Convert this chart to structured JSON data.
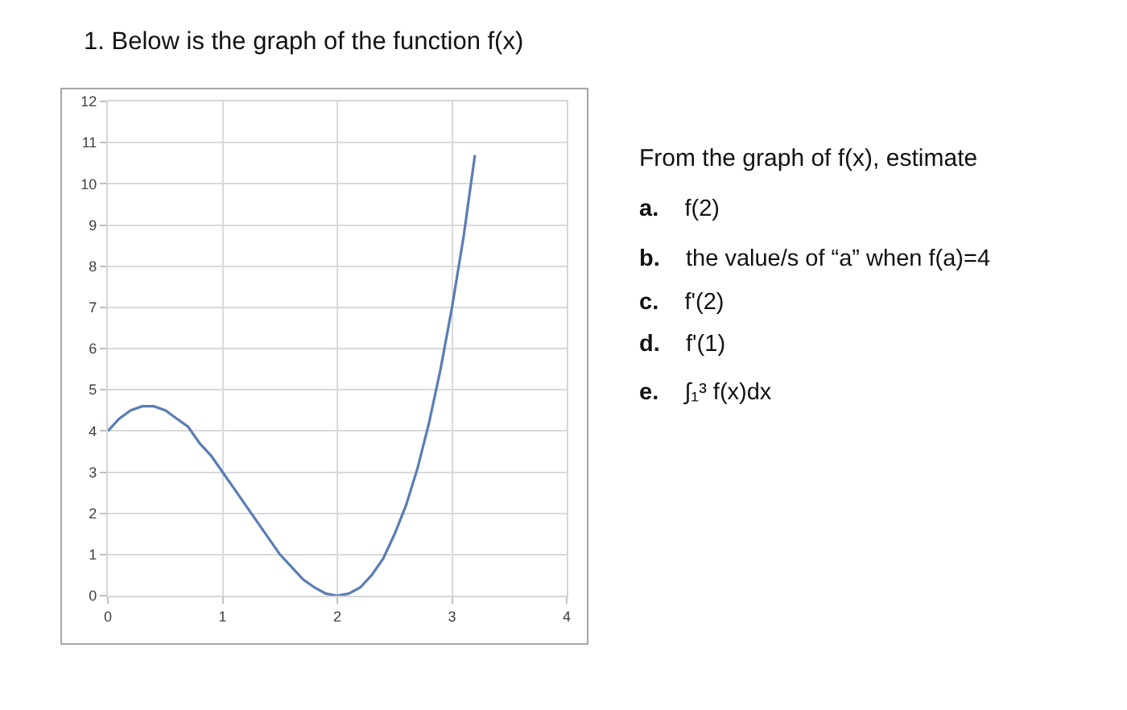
{
  "chart_data": {
    "type": "line",
    "title": "1. Below is the graph of the function f(x)",
    "x": [
      0,
      0.1,
      0.2,
      0.3,
      0.4,
      0.5,
      0.6,
      0.7,
      0.8,
      0.9,
      1.0,
      1.1,
      1.2,
      1.3,
      1.4,
      1.5,
      1.6,
      1.7,
      1.8,
      1.9,
      2.0,
      2.1,
      2.2,
      2.3,
      2.4,
      2.5,
      2.6,
      2.7,
      2.8,
      2.9,
      3.0,
      3.1,
      3.2
    ],
    "series": [
      {
        "color": "#5a7db5",
        "values": [
          4.0,
          4.3,
          4.5,
          4.6,
          4.6,
          4.5,
          4.3,
          4.1,
          3.7,
          3.4,
          3.0,
          2.6,
          2.2,
          1.8,
          1.4,
          1.0,
          0.7,
          0.4,
          0.2,
          0.05,
          0,
          0.05,
          0.2,
          0.5,
          0.9,
          1.5,
          2.2,
          3.1,
          4.2,
          5.5,
          7.0,
          8.7,
          10.7
        ]
      }
    ],
    "xlim": [
      0,
      4
    ],
    "xticks": [
      0,
      1,
      2,
      3,
      4
    ],
    "ylim": [
      0,
      12
    ],
    "yticks": [
      0,
      1,
      2,
      3,
      4,
      5,
      6,
      7,
      8,
      9,
      10,
      11,
      12
    ],
    "grid": true,
    "line_style": "solid",
    "annotations": [
      "From the graph of f(x), estimate",
      "a. f(2)",
      "b. the value/s of “a” when f(a)=4",
      "c. f'(2)",
      "d. f'(1)",
      "e. ∫₁³ f(x)dx"
    ]
  }
}
